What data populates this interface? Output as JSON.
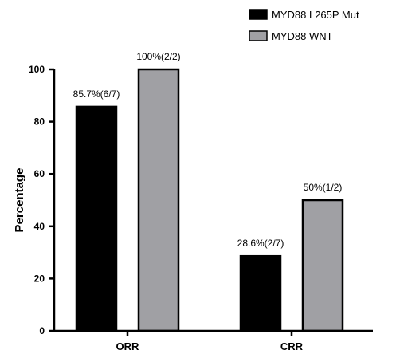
{
  "chart_data": {
    "type": "bar",
    "categories": [
      "ORR",
      "CRR"
    ],
    "series": [
      {
        "name": "MYD88 L265P Mut",
        "color": "#000000",
        "values": [
          85.7,
          28.6
        ],
        "labels": [
          "85.7%(6/7)",
          "28.6%(2/7)"
        ]
      },
      {
        "name": "MYD88 WNT",
        "color": "#a0a0a4",
        "values": [
          100,
          50
        ],
        "labels": [
          "100%(2/2)",
          "50%(1/2)"
        ]
      }
    ],
    "ylabel": "Percentage",
    "xlabel": "",
    "ylim": [
      0,
      100
    ],
    "yticks": [
      0,
      20,
      40,
      60,
      80,
      100
    ],
    "grid": false,
    "legend": "top-right"
  }
}
